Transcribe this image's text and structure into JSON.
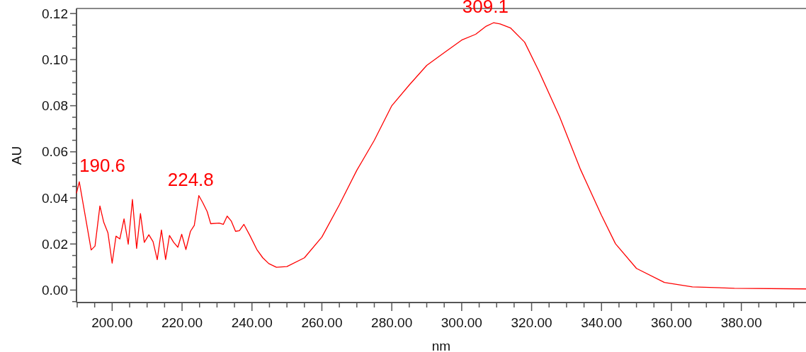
{
  "chart_data": {
    "type": "line",
    "xlabel": "nm",
    "ylabel": "AU",
    "xlim": [
      189.8,
      398.5
    ],
    "ylim": [
      -0.0054,
      0.1222
    ],
    "xticks": [
      {
        "value": 190,
        "label": null
      },
      {
        "value": 195,
        "label": null
      },
      {
        "value": 200,
        "label": "200.00"
      },
      {
        "value": 205,
        "label": null
      },
      {
        "value": 210,
        "label": null
      },
      {
        "value": 215,
        "label": null
      },
      {
        "value": 220,
        "label": "220.00"
      },
      {
        "value": 225,
        "label": null
      },
      {
        "value": 230,
        "label": null
      },
      {
        "value": 235,
        "label": null
      },
      {
        "value": 240,
        "label": "240.00"
      },
      {
        "value": 245,
        "label": null
      },
      {
        "value": 250,
        "label": null
      },
      {
        "value": 255,
        "label": null
      },
      {
        "value": 260,
        "label": "260.00"
      },
      {
        "value": 265,
        "label": null
      },
      {
        "value": 270,
        "label": null
      },
      {
        "value": 275,
        "label": null
      },
      {
        "value": 280,
        "label": "280.00"
      },
      {
        "value": 285,
        "label": null
      },
      {
        "value": 290,
        "label": null
      },
      {
        "value": 295,
        "label": null
      },
      {
        "value": 300,
        "label": "300.00"
      },
      {
        "value": 305,
        "label": null
      },
      {
        "value": 310,
        "label": null
      },
      {
        "value": 315,
        "label": null
      },
      {
        "value": 320,
        "label": "320.00"
      },
      {
        "value": 325,
        "label": null
      },
      {
        "value": 330,
        "label": null
      },
      {
        "value": 335,
        "label": null
      },
      {
        "value": 340,
        "label": "340.00"
      },
      {
        "value": 345,
        "label": null
      },
      {
        "value": 350,
        "label": null
      },
      {
        "value": 355,
        "label": null
      },
      {
        "value": 360,
        "label": "360.00"
      },
      {
        "value": 365,
        "label": null
      },
      {
        "value": 370,
        "label": null
      },
      {
        "value": 375,
        "label": null
      },
      {
        "value": 380,
        "label": "380.00"
      },
      {
        "value": 385,
        "label": null
      },
      {
        "value": 390,
        "label": null
      },
      {
        "value": 395,
        "label": null
      }
    ],
    "yticks": [
      {
        "value": -0.005,
        "label": null
      },
      {
        "value": 0,
        "label": "0.00"
      },
      {
        "value": 0.005,
        "label": null
      },
      {
        "value": 0.01,
        "label": null
      },
      {
        "value": 0.015,
        "label": null
      },
      {
        "value": 0.02,
        "label": "0.02"
      },
      {
        "value": 0.025,
        "label": null
      },
      {
        "value": 0.03,
        "label": null
      },
      {
        "value": 0.035,
        "label": null
      },
      {
        "value": 0.04,
        "label": "0.04"
      },
      {
        "value": 0.045,
        "label": null
      },
      {
        "value": 0.05,
        "label": null
      },
      {
        "value": 0.055,
        "label": null
      },
      {
        "value": 0.06,
        "label": "0.06"
      },
      {
        "value": 0.065,
        "label": null
      },
      {
        "value": 0.07,
        "label": null
      },
      {
        "value": 0.075,
        "label": null
      },
      {
        "value": 0.08,
        "label": "0.08"
      },
      {
        "value": 0.085,
        "label": null
      },
      {
        "value": 0.09,
        "label": null
      },
      {
        "value": 0.095,
        "label": null
      },
      {
        "value": 0.1,
        "label": "0.10"
      },
      {
        "value": 0.105,
        "label": null
      },
      {
        "value": 0.11,
        "label": null
      },
      {
        "value": 0.115,
        "label": null
      },
      {
        "value": 0.12,
        "label": "0.12"
      }
    ],
    "grid": false,
    "marker": "none",
    "line_style": "solid",
    "annotations": [
      {
        "text": "190.6",
        "x": 190.6,
        "y": 0.047
      },
      {
        "text": "224.8",
        "x": 224.8,
        "y": 0.041
      },
      {
        "text": "309.1",
        "x": 309.1,
        "y": 0.116
      }
    ],
    "series": [
      {
        "color": "#ff0000",
        "x": [
          189.8,
          190.6,
          192.1,
          194.0,
          195.1,
          196.5,
          197.6,
          198.8,
          200.0,
          201.1,
          202.2,
          203.4,
          204.6,
          205.8,
          207.0,
          208.1,
          209.2,
          210.5,
          211.7,
          212.9,
          214.1,
          215.3,
          216.4,
          217.6,
          218.8,
          219.9,
          221.1,
          222.4,
          223.5,
          224.8,
          225.9,
          227.2,
          228.2,
          230.6,
          231.8,
          232.9,
          234.1,
          235.3,
          236.4,
          237.7,
          239.4,
          241.4,
          243.1,
          244.8,
          247.0,
          250.0,
          255.0,
          260.0,
          265.0,
          270.0,
          275.0,
          280.0,
          285.0,
          290.0,
          295.0,
          300.0,
          304.0,
          307.0,
          309.1,
          311.0,
          314.0,
          318.0,
          322.0,
          328.0,
          334.0,
          340.0,
          344.0,
          350.0,
          358.0,
          366.0,
          378.0,
          398.5
        ],
        "values": [
          0.042,
          0.047,
          0.034,
          0.0174,
          0.0191,
          0.0365,
          0.0294,
          0.0248,
          0.0117,
          0.0234,
          0.0222,
          0.0309,
          0.0199,
          0.0393,
          0.0181,
          0.0332,
          0.0207,
          0.024,
          0.021,
          0.0132,
          0.0261,
          0.0133,
          0.0237,
          0.0207,
          0.0186,
          0.0242,
          0.0176,
          0.0255,
          0.0281,
          0.041,
          0.038,
          0.034,
          0.0288,
          0.0291,
          0.0285,
          0.0321,
          0.0299,
          0.0255,
          0.0258,
          0.0285,
          0.0237,
          0.0176,
          0.014,
          0.0115,
          0.0099,
          0.0102,
          0.014,
          0.023,
          0.037,
          0.052,
          0.065,
          0.08,
          0.089,
          0.0975,
          0.103,
          0.1085,
          0.111,
          0.1145,
          0.116,
          0.1155,
          0.1137,
          0.1076,
          0.0953,
          0.0753,
          0.0523,
          0.0324,
          0.0201,
          0.0094,
          0.0033,
          0.0014,
          0.0008,
          0.0005
        ]
      }
    ]
  }
}
